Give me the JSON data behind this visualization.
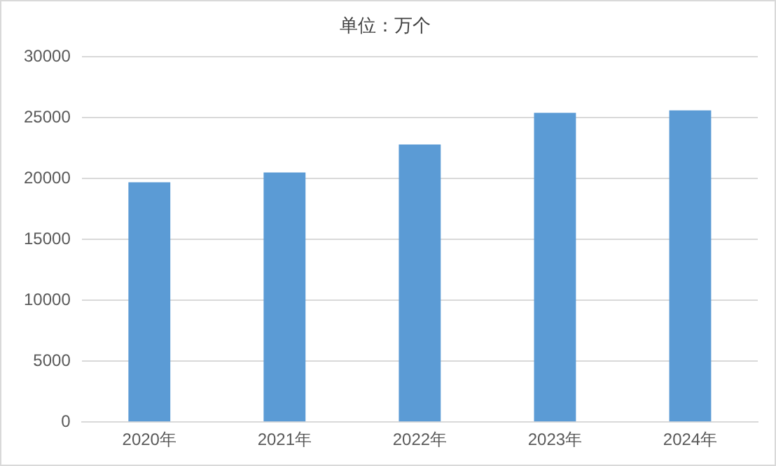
{
  "chart_data": {
    "type": "bar",
    "title": "单位：万个",
    "categories": [
      "2020年",
      "2021年",
      "2022年",
      "2023年",
      "2024年"
    ],
    "values": [
      19700,
      20500,
      22800,
      25400,
      25600
    ],
    "color": "#5b9bd5",
    "ylim": [
      0,
      30000
    ],
    "yticks": [
      0,
      5000,
      10000,
      15000,
      20000,
      25000,
      30000
    ],
    "grid": "y",
    "legend": false
  }
}
